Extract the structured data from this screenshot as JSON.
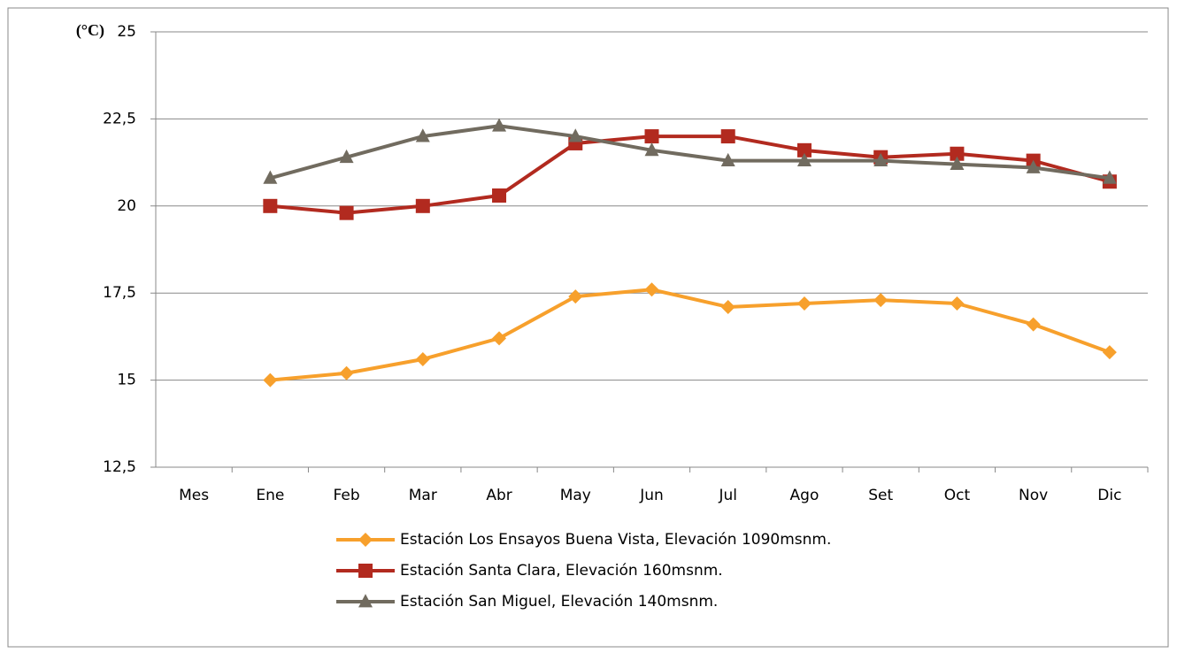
{
  "chart_data": {
    "type": "line",
    "y_label": "(°C)",
    "categories": [
      "Mes",
      "Ene",
      "Feb",
      "Mar",
      "Abr",
      "May",
      "Jun",
      "Jul",
      "Ago",
      "Set",
      "Oct",
      "Nov",
      "Dic"
    ],
    "series": [
      {
        "name": "Estación Los Ensayos Buena Vista, Elevación 1090msnm.",
        "color": "#f7a02c",
        "marker": "diamond",
        "values": [
          null,
          15.0,
          15.2,
          15.6,
          16.2,
          17.4,
          17.6,
          17.1,
          17.2,
          17.3,
          17.2,
          16.6,
          15.8
        ]
      },
      {
        "name": "Estación Santa Clara, Elevación 160msnm.",
        "color": "#b22a1f",
        "marker": "square",
        "values": [
          null,
          20.0,
          19.8,
          20.0,
          20.3,
          21.8,
          22.0,
          22.0,
          21.6,
          21.4,
          21.5,
          21.3,
          20.7
        ]
      },
      {
        "name": "Estación San Miguel, Elevación 140msnm.",
        "color": "#716b5f",
        "marker": "triangle",
        "values": [
          null,
          20.8,
          21.4,
          22.0,
          22.3,
          22.0,
          21.6,
          21.3,
          21.3,
          21.3,
          21.2,
          21.1,
          20.8
        ]
      }
    ],
    "ylim": [
      12.5,
      25
    ],
    "yticks": [
      {
        "value": 12.5,
        "label": "12,5"
      },
      15,
      {
        "value": 17.5,
        "label": "17,5"
      },
      20,
      {
        "value": 22.5,
        "label": "22,5"
      },
      25
    ],
    "grid": true,
    "legend": "bottom"
  }
}
